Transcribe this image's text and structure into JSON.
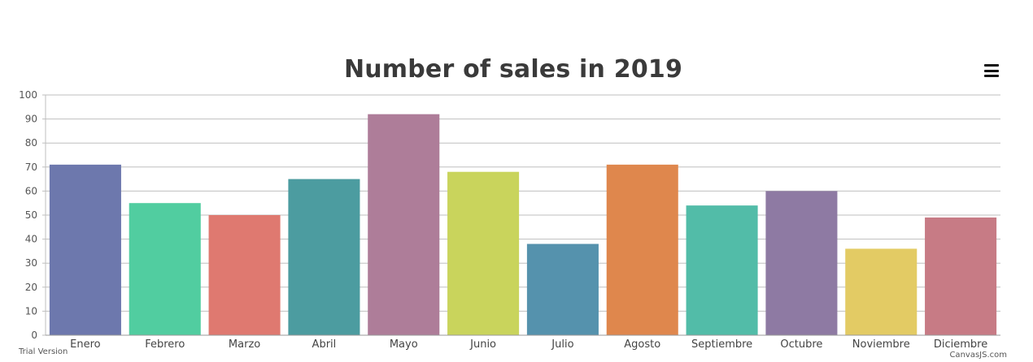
{
  "chart_data": {
    "type": "bar",
    "title": "Number of sales in 2019",
    "categories": [
      "Enero",
      "Febrero",
      "Marzo",
      "Abril",
      "Mayo",
      "Junio",
      "Julio",
      "Agosto",
      "Septiembre",
      "Octubre",
      "Noviembre",
      "Diciembre"
    ],
    "values": [
      71,
      55,
      50,
      65,
      92,
      68,
      38,
      71,
      54,
      60,
      36,
      49
    ],
    "colors": [
      "#6d78ad",
      "#51cda0",
      "#df7970",
      "#4c9ca0",
      "#ae7d99",
      "#c9d45c",
      "#5592ad",
      "#df874d",
      "#52bca8",
      "#8e7aa3",
      "#e3cb64",
      "#c77b85"
    ],
    "ylim": [
      0,
      100
    ],
    "yticks": [
      0,
      10,
      20,
      30,
      40,
      50,
      60,
      70,
      80,
      90,
      100
    ],
    "grid": true,
    "xlabel": "",
    "ylabel": ""
  },
  "menu": {
    "icon": "hamburger-menu-icon"
  },
  "credits": {
    "left": "Trial Version",
    "right": "CanvasJS.com"
  }
}
